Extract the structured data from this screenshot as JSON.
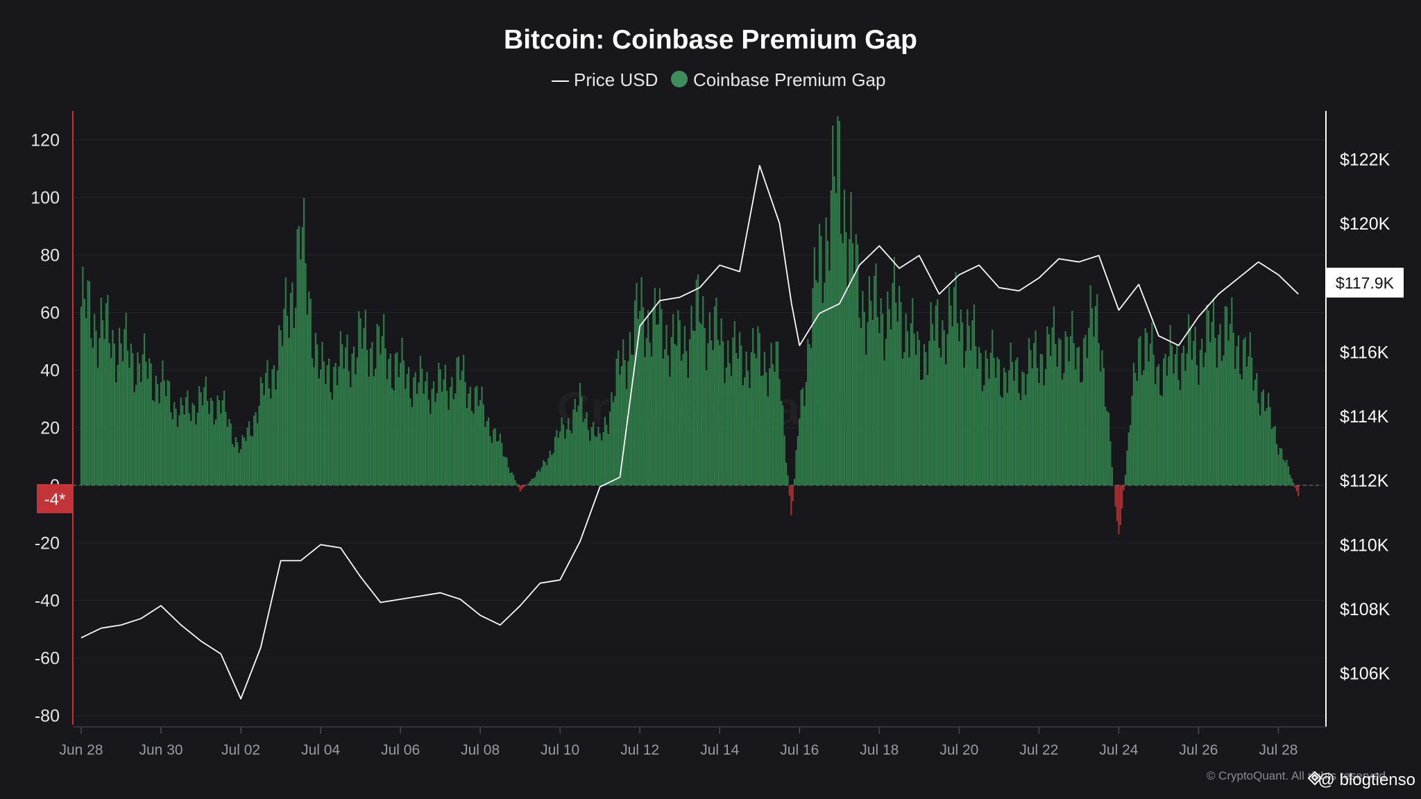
{
  "chart_data": {
    "type": "bar",
    "title": "Bitcoin: Coinbase Premium Gap",
    "legend": {
      "position": "top-center",
      "items": [
        {
          "label": "Price USD",
          "marker": "line",
          "color": "#ffffff"
        },
        {
          "label": "Coinbase Premium Gap",
          "marker": "circle",
          "color": "#3e8e5c"
        }
      ]
    },
    "colors": {
      "positive": "#2f7a48",
      "negative": "#a82e32",
      "price": "#ffffff",
      "left_axis": "#c23438",
      "background": "#17171c"
    },
    "y_left": {
      "ylim": [
        -82,
        130
      ],
      "ticks": [
        "120",
        "100",
        "80",
        "60",
        "40",
        "20",
        "0",
        "-20",
        "-40",
        "-60",
        "-80"
      ],
      "tick_values": [
        120,
        100,
        80,
        60,
        40,
        20,
        0,
        -20,
        -40,
        -60,
        -80
      ]
    },
    "y_right": {
      "ylim": [
        104500,
        123500
      ],
      "ticks": [
        "$122K",
        "$120K",
        "$118K",
        "$116K",
        "$114K",
        "$112K",
        "$110K",
        "$108K",
        "$106K"
      ],
      "tick_values": [
        122000,
        120000,
        118000,
        116000,
        114000,
        112000,
        110000,
        108000,
        106000
      ]
    },
    "x_axis": {
      "start": "Jun 28",
      "end": "Jul 29",
      "ticks": [
        "Jun 28",
        "Jun 30",
        "Jul 02",
        "Jul 04",
        "Jul 06",
        "Jul 08",
        "Jul 10",
        "Jul 12",
        "Jul 14",
        "Jul 16",
        "Jul 18",
        "Jul 20",
        "Jul 22",
        "Jul 24",
        "Jul 26",
        "Jul 28"
      ],
      "tick_days": [
        0,
        2,
        4,
        6,
        8,
        10,
        12,
        14,
        16,
        18,
        20,
        22,
        24,
        26,
        28,
        30
      ]
    },
    "current_value_left": "-4*",
    "current_price_label": "$117.9K",
    "series": [
      {
        "name": "Coinbase Premium Gap",
        "kind": "bar",
        "x_day": [
          0,
          0.5,
          1,
          1.5,
          2,
          2.5,
          3,
          3.5,
          4,
          4.5,
          5,
          5.5,
          6,
          6.5,
          7,
          7.5,
          8,
          8.5,
          9,
          9.5,
          10,
          10.5,
          11,
          11.5,
          12,
          12.5,
          13,
          13.5,
          14,
          14.5,
          15,
          15.5,
          16,
          16.5,
          17,
          17.5,
          17.8,
          18,
          18.5,
          19,
          19.5,
          20,
          20.5,
          21,
          21.5,
          22,
          22.5,
          23,
          23.5,
          24,
          24.5,
          25,
          25.5,
          26,
          26.5,
          27,
          27.5,
          28,
          28.5,
          29,
          29.5,
          30,
          30.5
        ],
        "values": [
          62,
          55,
          48,
          42,
          35,
          25,
          30,
          28,
          12,
          30,
          48,
          85,
          38,
          42,
          50,
          48,
          40,
          35,
          34,
          38,
          28,
          14,
          -2,
          5,
          18,
          28,
          15,
          40,
          60,
          55,
          48,
          60,
          50,
          44,
          45,
          40,
          -12,
          25,
          78,
          110,
          65,
          60,
          62,
          45,
          55,
          60,
          45,
          40,
          38,
          45,
          50,
          45,
          60,
          -20,
          52,
          40,
          45,
          48,
          55,
          50,
          35,
          15,
          -4
        ]
      },
      {
        "name": "Price USD",
        "kind": "line",
        "x_day": [
          0,
          0.5,
          1,
          1.5,
          2,
          2.5,
          3,
          3.5,
          4,
          4.5,
          5,
          5.5,
          6,
          6.5,
          7,
          7.5,
          8,
          8.5,
          9,
          9.5,
          10,
          10.5,
          11,
          11.5,
          12,
          12.5,
          13,
          13.5,
          14,
          14.5,
          15,
          15.5,
          16,
          16.5,
          17,
          17.5,
          17.8,
          18,
          18.5,
          19,
          19.5,
          20,
          20.5,
          21,
          21.5,
          22,
          22.5,
          23,
          23.5,
          24,
          24.5,
          25,
          25.5,
          26,
          26.5,
          27,
          27.5,
          28,
          28.5,
          29,
          29.5,
          30,
          30.5
        ],
        "values": [
          107100,
          107400,
          107500,
          107700,
          108100,
          107500,
          107000,
          106600,
          105200,
          106800,
          109500,
          109500,
          110000,
          109900,
          109000,
          108200,
          108300,
          108400,
          108500,
          108300,
          107800,
          107500,
          108100,
          108800,
          108900,
          110100,
          111800,
          112100,
          116800,
          117600,
          117700,
          118000,
          118700,
          118500,
          121800,
          120000,
          117500,
          116200,
          117200,
          117500,
          118700,
          119300,
          118600,
          119000,
          117800,
          118400,
          118700,
          118000,
          117900,
          118300,
          118900,
          118800,
          119000,
          117300,
          118100,
          116500,
          116200,
          117100,
          117800,
          118300,
          118800,
          118400,
          117800
        ]
      }
    ]
  },
  "footer": {
    "credit": "© CryptoQuant. All rights reserved",
    "handle": "@ blogtienso",
    "watermark": "CryptoQuant"
  }
}
